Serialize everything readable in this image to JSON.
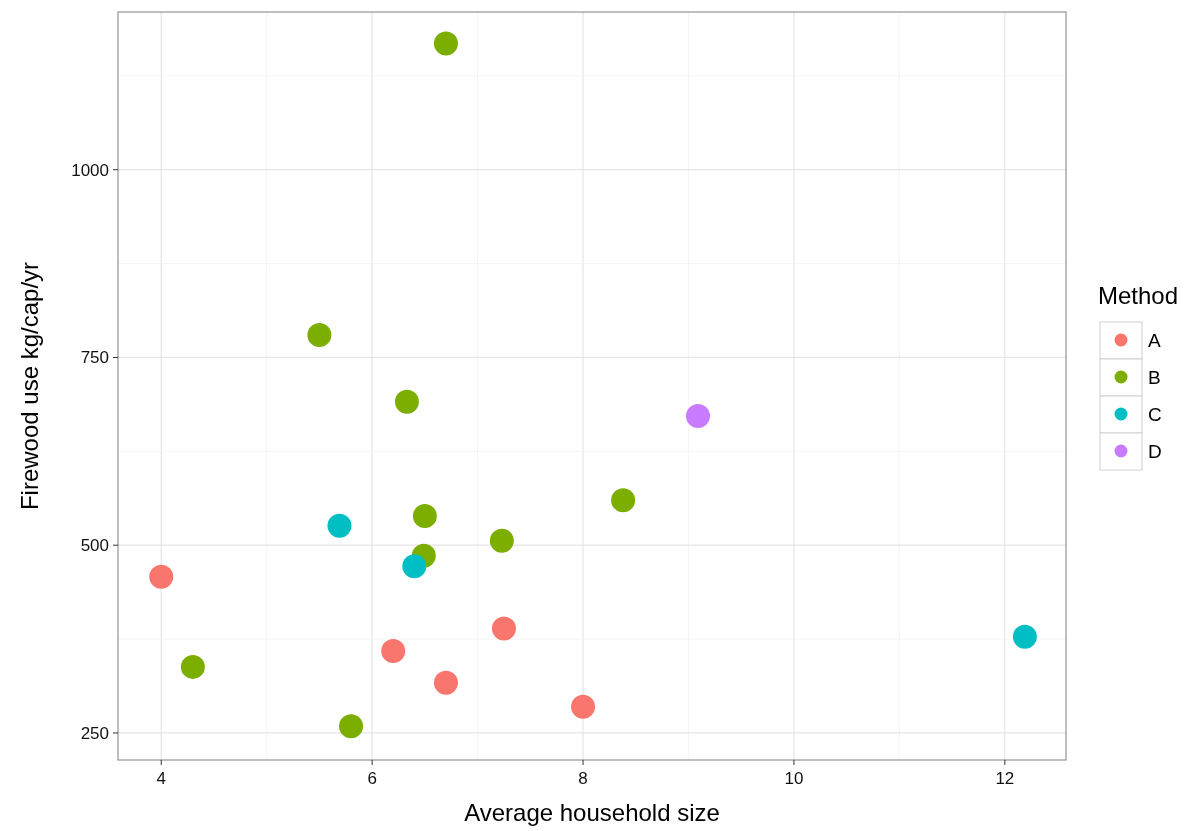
{
  "chart_data": {
    "type": "scatter",
    "xlabel": "Average household size",
    "ylabel": "Firewood use kg/cap/yr",
    "legend_title": "Method",
    "legend": "right",
    "grid": true,
    "marker": "circle",
    "xlim": [
      3.59,
      12.58
    ],
    "ylim": [
      214,
      1210
    ],
    "xticks": [
      4,
      {
        "value": 5,
        "label": null
      },
      6,
      {
        "value": 7,
        "label": null
      },
      8,
      {
        "value": 9,
        "label": null
      },
      10,
      {
        "value": 11,
        "label": null
      },
      12
    ],
    "yticks": [
      250,
      {
        "value": 375,
        "label": null
      },
      500,
      {
        "value": 625,
        "label": null
      },
      750,
      {
        "value": 875,
        "label": null
      },
      1000,
      {
        "value": 1125,
        "label": null
      }
    ],
    "series": [
      {
        "name": "A",
        "color": "#f8766d",
        "x": [
          4,
          6.2,
          6.7,
          7.25,
          8
        ],
        "values": [
          458,
          359,
          317,
          389,
          285
        ]
      },
      {
        "name": "B",
        "color": "#7cae00",
        "x": [
          6.7,
          5.5,
          6.33,
          4.3,
          5.8,
          6.5,
          6.49,
          7.23,
          8.38
        ],
        "values": [
          1168,
          780,
          691,
          338,
          259,
          539,
          486,
          506,
          560
        ]
      },
      {
        "name": "C",
        "color": "#00bfc4",
        "x": [
          5.69,
          6.4,
          12.19
        ],
        "values": [
          526,
          472,
          378
        ]
      },
      {
        "name": "D",
        "color": "#c77cff",
        "x": [
          9.09
        ],
        "values": [
          672
        ]
      }
    ]
  }
}
